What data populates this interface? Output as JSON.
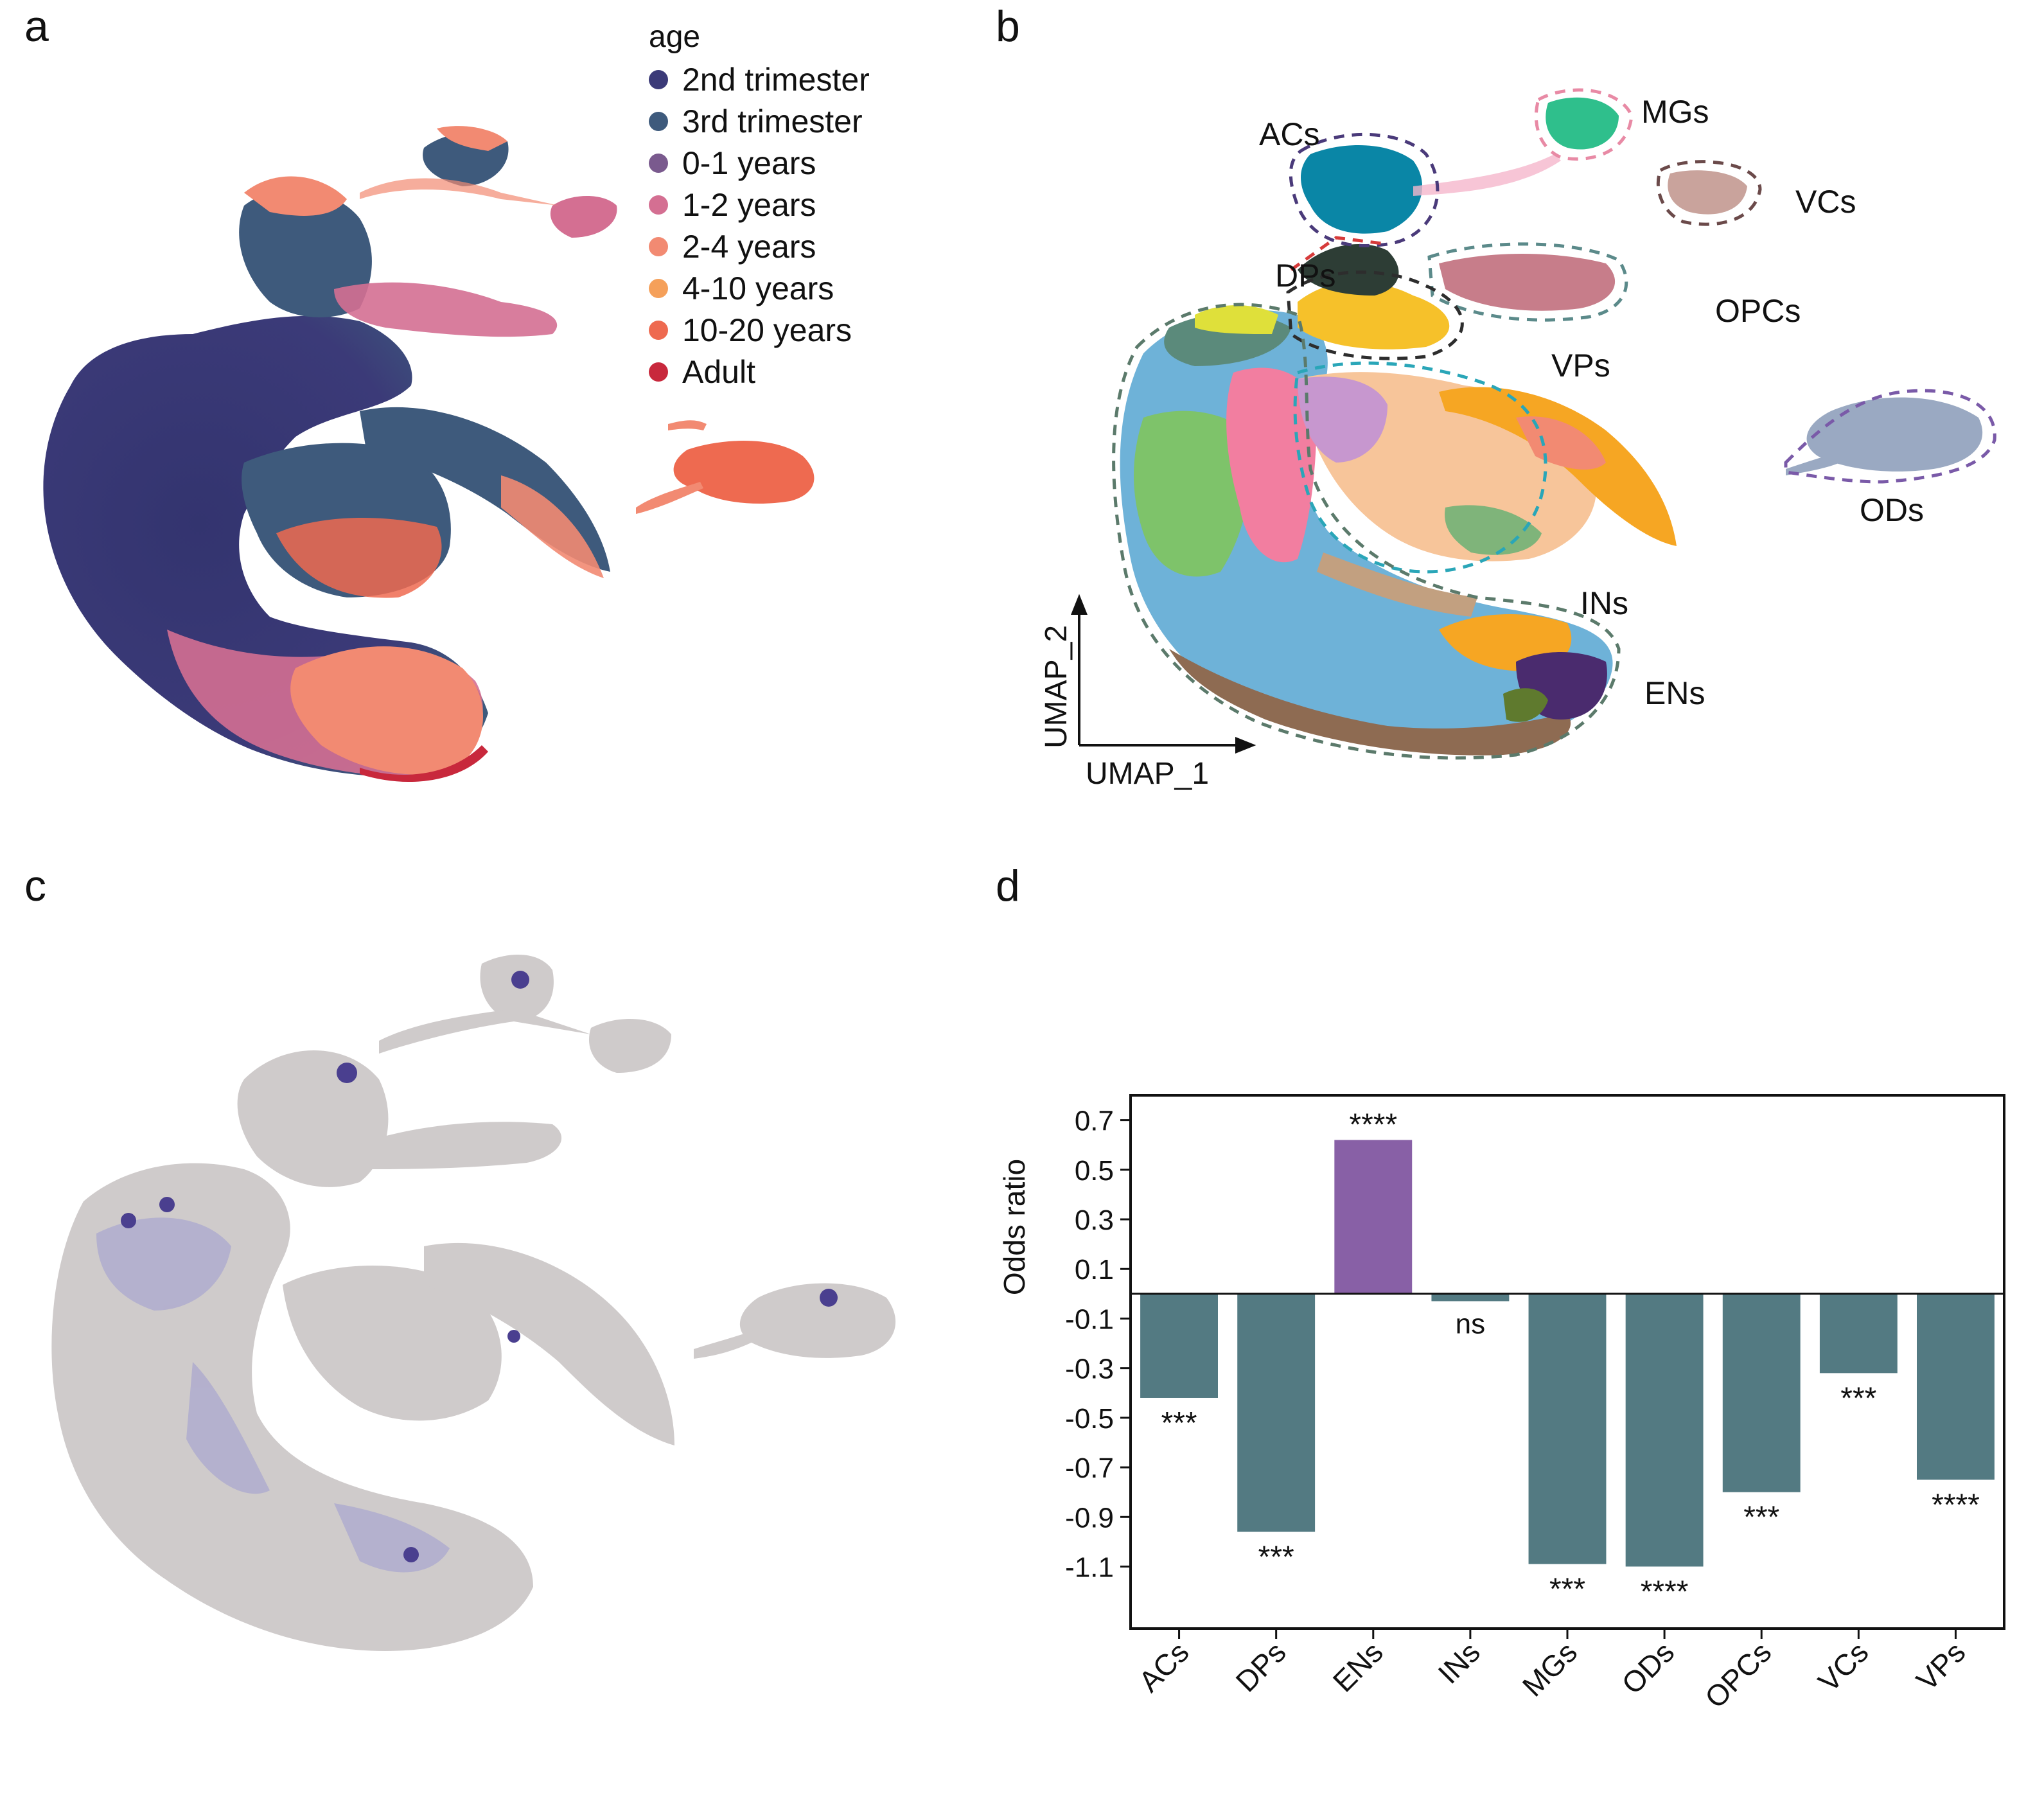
{
  "panels": {
    "a": "a",
    "b": "b",
    "c": "c",
    "d": "d"
  },
  "panel_a": {
    "legend_title": "age",
    "legend": [
      {
        "label": "2nd trimester",
        "color": "#3b3a78"
      },
      {
        "label": "3rd trimester",
        "color": "#3e5a7c"
      },
      {
        "label": "0-1 years",
        "color": "#7a5a8e"
      },
      {
        "label": "1-2 years",
        "color": "#d46f92"
      },
      {
        "label": "2-4 years",
        "color": "#f28a72"
      },
      {
        "label": "4-10 years",
        "color": "#f5a05a"
      },
      {
        "label": "10-20 years",
        "color": "#ee6a50"
      },
      {
        "label": "Adult",
        "color": "#c8283c"
      }
    ]
  },
  "panel_b": {
    "axis_x": "UMAP_1",
    "axis_y": "UMAP_2",
    "clusters": [
      {
        "label": "ACs",
        "color": "#0a86a6"
      },
      {
        "label": "MGs",
        "color": "#2fbf8c"
      },
      {
        "label": "VCs",
        "color": "#c9a39c"
      },
      {
        "label": "DPs",
        "color": "#2d3d35"
      },
      {
        "label": "OPCs",
        "color": "#c77d8a"
      },
      {
        "label": "VPs",
        "color": "#f6c12a"
      },
      {
        "label": "ODs",
        "color": "#9aa9c2"
      },
      {
        "label": "INs",
        "color": "#f7c59a"
      },
      {
        "label": "ENs",
        "color": "#4a2b6e"
      }
    ]
  },
  "panel_c": {
    "background_color": "#cfcbcb",
    "highlight_color": "#4a3f8f"
  },
  "chart_data": {
    "type": "bar",
    "title": "",
    "xlabel": "",
    "ylabel": "Odds ratio",
    "ylim": [
      -1.35,
      0.8
    ],
    "yticks": [
      0.7,
      0.5,
      0.3,
      0.1,
      -0.1,
      -0.3,
      -0.5,
      -0.7,
      -0.9,
      -1.1
    ],
    "ytick_labels": [
      "0.7",
      "0.5",
      "0.3",
      "0.1",
      "-0.1",
      "-0.3",
      "-0.5",
      "-0.7",
      "-0.9",
      "-1.1"
    ],
    "categories": [
      "ACs",
      "DPs",
      "ENs",
      "INs",
      "MGs",
      "ODs",
      "OPCs",
      "VCs",
      "VPs"
    ],
    "values": [
      -0.42,
      -0.96,
      0.62,
      -0.03,
      -1.09,
      -1.1,
      -0.8,
      -0.32,
      -0.75
    ],
    "significance": [
      "***",
      "***",
      "****",
      "ns",
      "***",
      "****",
      "***",
      "***",
      "****"
    ],
    "colors": {
      "positive": "#8860a6",
      "negative": "#537a82"
    }
  }
}
